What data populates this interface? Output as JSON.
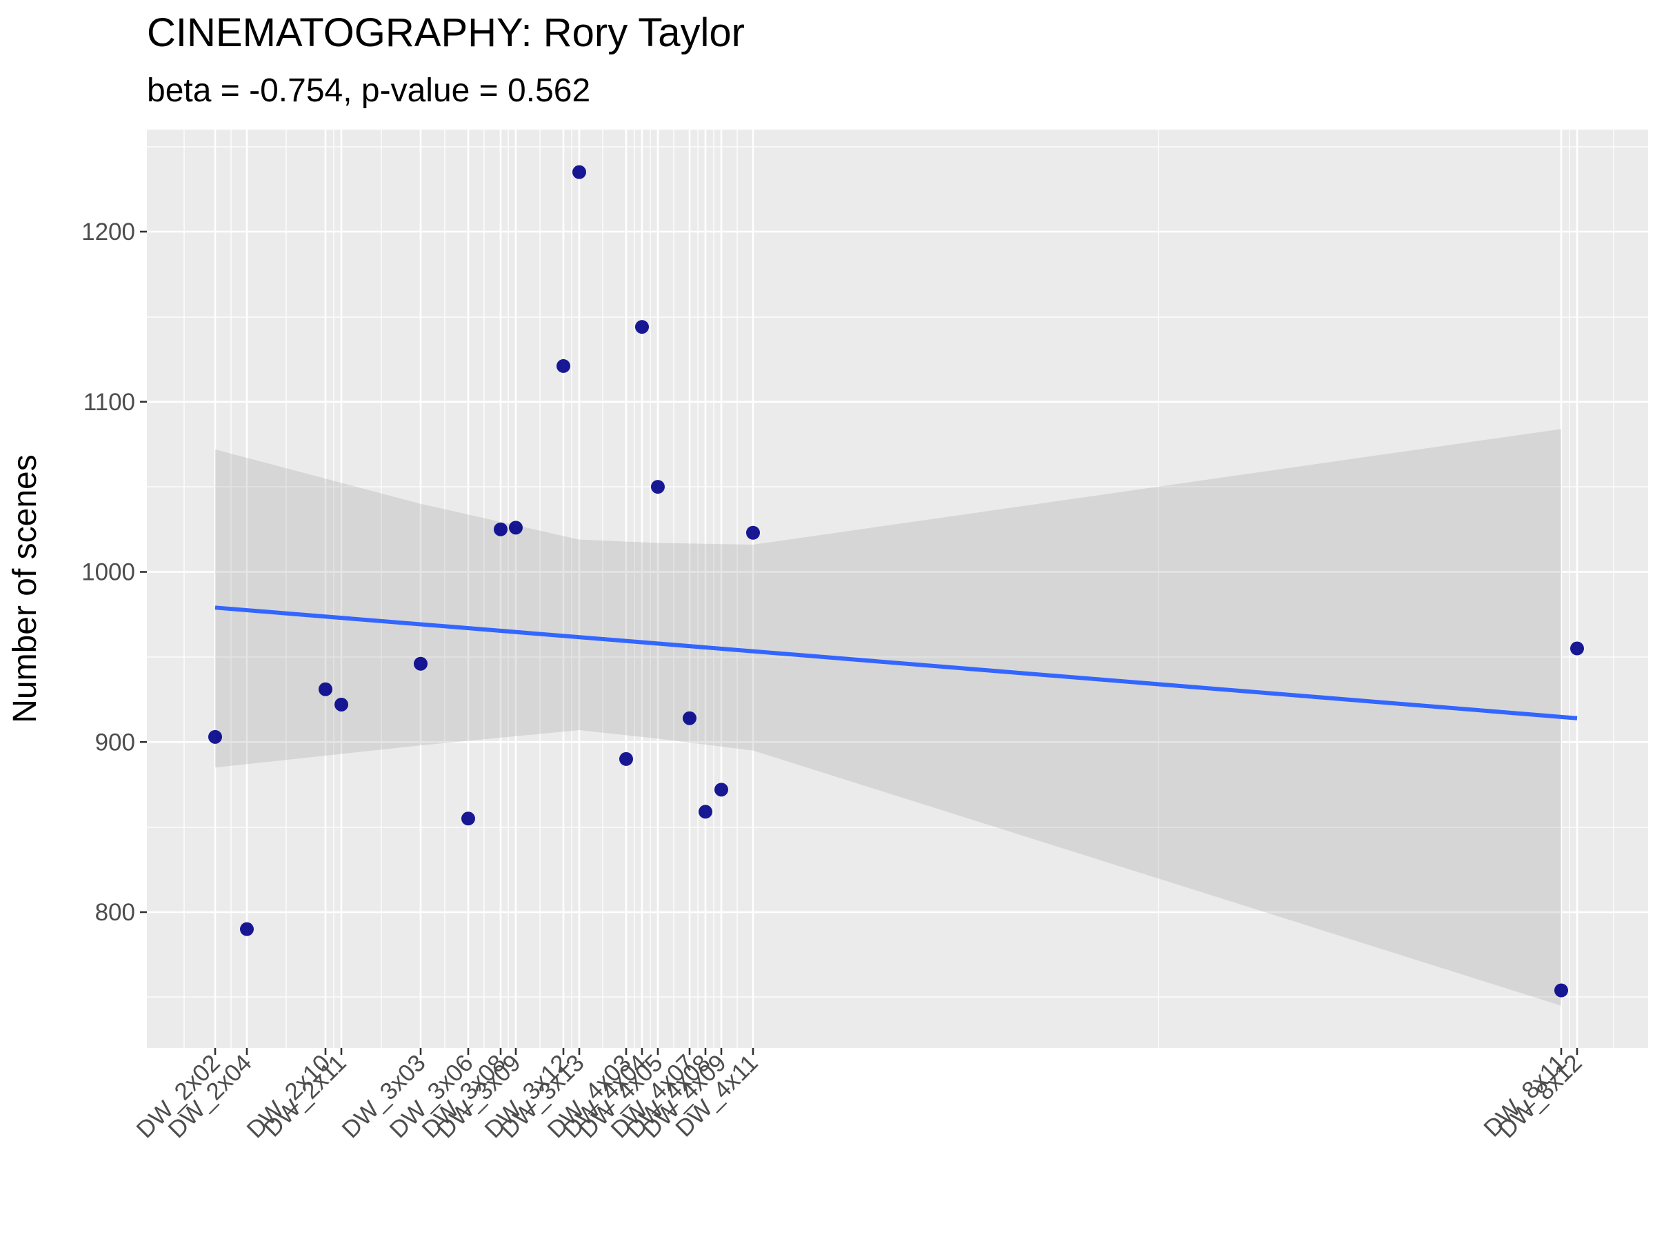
{
  "chart_data": {
    "type": "scatter",
    "title": "CINEMATOGRAPHY: Rory Taylor",
    "subtitle": "beta = -0.754, p-value = 0.562",
    "xlabel": "",
    "ylabel": "Number of scenes",
    "ylim": [
      720,
      1260
    ],
    "y_ticks": [
      800,
      900,
      1000,
      1100,
      1200
    ],
    "grid": true,
    "x_axis_type": "ordinal episode axis (uneven spacing)",
    "points": [
      {
        "x": "DW_2x02",
        "y": 903
      },
      {
        "x": "DW_2x04",
        "y": 790
      },
      {
        "x": "DW_2x10",
        "y": 931
      },
      {
        "x": "DW_2x11",
        "y": 922
      },
      {
        "x": "DW_3x03",
        "y": 946
      },
      {
        "x": "DW_3x06",
        "y": 855
      },
      {
        "x": "DW_3x08",
        "y": 1025
      },
      {
        "x": "DW_3x09",
        "y": 1026
      },
      {
        "x": "DW_3x12",
        "y": 1121
      },
      {
        "x": "DW_3x13",
        "y": 1235
      },
      {
        "x": "DW_4x03",
        "y": 890
      },
      {
        "x": "DW_4x04",
        "y": 1144
      },
      {
        "x": "DW_4x05",
        "y": 1050
      },
      {
        "x": "DW_4x07",
        "y": 914
      },
      {
        "x": "DW_4x08",
        "y": 859
      },
      {
        "x": "DW_4x09",
        "y": 872
      },
      {
        "x": "DW_4x11",
        "y": 1023
      },
      {
        "x": "DW_8x11",
        "y": 754
      },
      {
        "x": "DW_8x12",
        "y": 955
      }
    ],
    "trend_line": {
      "start": 979,
      "end": 914
    },
    "confidence_band": [
      {
        "x": "DW_2x02",
        "lower": 885,
        "upper": 1072
      },
      {
        "x": "DW_3x03",
        "lower": 898,
        "upper": 1040
      },
      {
        "x": "DW_3x13",
        "lower": 907,
        "upper": 1019
      },
      {
        "x": "DW_4x05",
        "lower": 902,
        "upper": 1017
      },
      {
        "x": "DW_4x11",
        "lower": 895,
        "upper": 1016
      },
      {
        "x": "DW_8x11",
        "lower": 745,
        "upper": 1084
      }
    ],
    "colors": {
      "point": "#00008B",
      "trend": "#3366FF",
      "band": "#D9D9D9",
      "panel": "#EBEBEB",
      "grid": "#FFFFFF"
    }
  }
}
